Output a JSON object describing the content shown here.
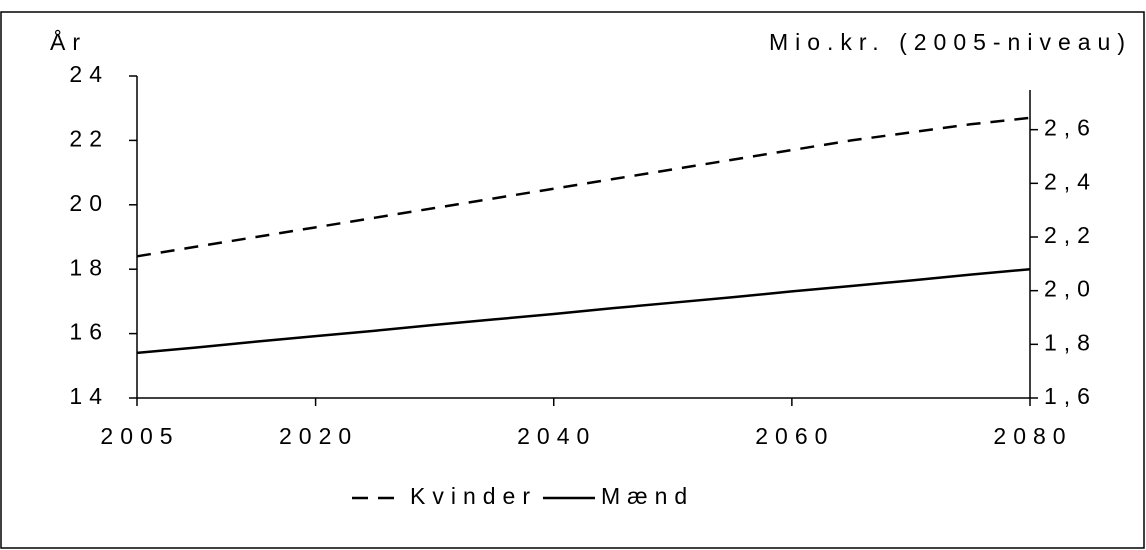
{
  "chart_data": {
    "type": "line",
    "y_label": "År",
    "y2_label": "Mio.kr. (2005-niveau)",
    "x": [
      2005,
      2010,
      2015,
      2020,
      2025,
      2030,
      2035,
      2040,
      2045,
      2050,
      2055,
      2060,
      2065,
      2070,
      2075,
      2080
    ],
    "series": [
      {
        "name": "Kvinder",
        "color": "#000000",
        "dash": true,
        "values": [
          18.4,
          18.7,
          19.0,
          19.3,
          19.6,
          19.9,
          20.2,
          20.5,
          20.8,
          21.1,
          21.4,
          21.7,
          22.0,
          22.25,
          22.5,
          22.7
        ]
      },
      {
        "name": "Mænd",
        "color": "#000000",
        "dash": false,
        "values": [
          15.4,
          15.57,
          15.75,
          15.92,
          16.09,
          16.27,
          16.44,
          16.61,
          16.79,
          16.96,
          17.13,
          17.31,
          17.48,
          17.65,
          17.83,
          18.0
        ]
      }
    ],
    "xlim": [
      2005,
      2080
    ],
    "xticks": [
      2005,
      2020,
      2040,
      2060,
      2080
    ],
    "ylim": [
      14,
      24
    ],
    "yticks": [
      14,
      16,
      18,
      20,
      22,
      24
    ],
    "y2lim": [
      1.6,
      2.8
    ],
    "y2ticks": [
      {
        "value": 1.6,
        "label": "1,6"
      },
      {
        "value": 1.8,
        "label": "1,8"
      },
      {
        "value": 2.0,
        "label": "2,0"
      },
      {
        "value": 2.2,
        "label": "2,2"
      },
      {
        "value": 2.4,
        "label": "2,4"
      },
      {
        "value": 2.6,
        "label": "2,6"
      }
    ],
    "grid": false,
    "legend": "bottom"
  }
}
